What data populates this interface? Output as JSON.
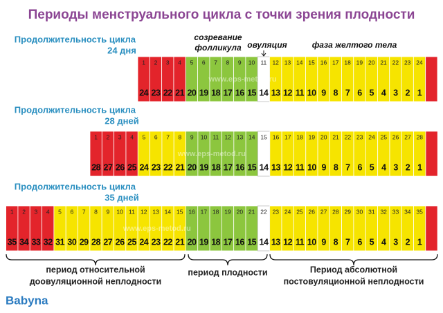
{
  "title": "Периоды менструального цикла с точки зрения плодности",
  "phase_labels": {
    "follicle": [
      "созревание",
      "фолликула"
    ],
    "ovulation": "овуляция",
    "luteal": "фаза желтого тела"
  },
  "palette": {
    "r": "#e3242b",
    "g": "#8cc63e",
    "w": "#ffffff",
    "y": "#f6e400"
  },
  "rows": [
    {
      "label": [
        "Продолжительность цикла",
        "24 дня"
      ],
      "days": [
        1,
        2,
        3,
        4,
        5,
        6,
        7,
        8,
        9,
        10,
        11,
        12,
        13,
        14,
        15,
        16,
        17,
        18,
        19,
        20,
        21,
        22,
        23,
        24
      ],
      "countdown": [
        24,
        23,
        22,
        21,
        20,
        19,
        18,
        17,
        16,
        15,
        14,
        13,
        12,
        11,
        10,
        9,
        8,
        7,
        6,
        5,
        4,
        3,
        2,
        1
      ],
      "colors": "rrrrggggggwyyyyyyyyyyyyyr"
    },
    {
      "label": [
        "Продолжительность цикла",
        "28 дней"
      ],
      "days": [
        1,
        2,
        3,
        4,
        5,
        6,
        7,
        8,
        9,
        10,
        11,
        12,
        13,
        14,
        15,
        16,
        17,
        18,
        19,
        20,
        21,
        22,
        23,
        24,
        25,
        26,
        27,
        28
      ],
      "countdown": [
        28,
        27,
        26,
        25,
        24,
        23,
        22,
        21,
        20,
        19,
        18,
        17,
        16,
        15,
        14,
        13,
        12,
        11,
        10,
        9,
        8,
        7,
        6,
        5,
        4,
        3,
        2,
        1
      ],
      "colors": "rrrryyyyggggggwyyyyyyyyyyyyyr"
    },
    {
      "label": [
        "Продолжительность цикла",
        "35 дней"
      ],
      "days": [
        1,
        2,
        3,
        4,
        5,
        6,
        7,
        8,
        9,
        10,
        11,
        12,
        13,
        14,
        15,
        16,
        17,
        18,
        19,
        20,
        21,
        22,
        23,
        24,
        25,
        26,
        27,
        28,
        29,
        30,
        31,
        32,
        33,
        34,
        35
      ],
      "countdown": [
        35,
        34,
        33,
        32,
        31,
        30,
        29,
        28,
        27,
        26,
        25,
        24,
        23,
        22,
        21,
        20,
        19,
        18,
        17,
        16,
        15,
        14,
        13,
        12,
        11,
        10,
        9,
        8,
        7,
        6,
        5,
        4,
        3,
        2,
        1
      ],
      "colors": "rrrryyyyyyyyyyyggggggwyyyyyyyyyyyyyr"
    }
  ],
  "periods": [
    {
      "lines": [
        "период относительной",
        "доовуляционной неплодности"
      ]
    },
    {
      "lines": [
        "период плодности"
      ]
    },
    {
      "lines": [
        "Период абсолютной",
        "постовуляционной неплодности"
      ]
    }
  ],
  "watermark": "www.eps-metod.ru",
  "logo": "Babyna"
}
